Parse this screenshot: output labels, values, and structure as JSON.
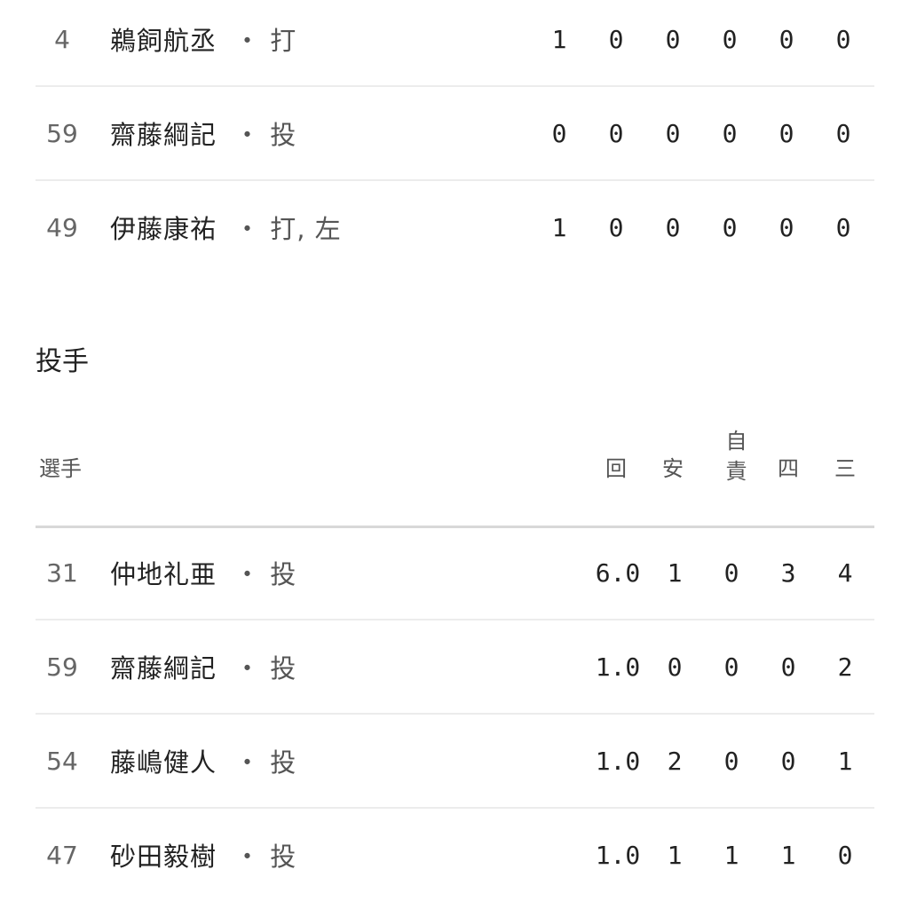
{
  "batting_rows": [
    {
      "number": "4",
      "name": "鵜飼航丞",
      "position": "・ 打",
      "stats": [
        "1",
        "0",
        "0",
        "0",
        "0",
        "0"
      ]
    },
    {
      "number": "59",
      "name": "齋藤綱記",
      "position": "・ 投",
      "stats": [
        "0",
        "0",
        "0",
        "0",
        "0",
        "0"
      ]
    },
    {
      "number": "49",
      "name": "伊藤康祐",
      "position": "・ 打, 左",
      "stats": [
        "1",
        "0",
        "0",
        "0",
        "0",
        "0"
      ]
    }
  ],
  "pitching": {
    "title": "投手",
    "headers": {
      "player": "選手",
      "innings": "回",
      "hits": "安",
      "earned_runs": "自責",
      "walks": "四",
      "strikeouts": "三"
    },
    "rows": [
      {
        "number": "31",
        "name": "仲地礼亜",
        "position": "・ 投",
        "stats": [
          "6.0",
          "1",
          "0",
          "3",
          "4"
        ]
      },
      {
        "number": "59",
        "name": "齋藤綱記",
        "position": "・ 投",
        "stats": [
          "1.0",
          "0",
          "0",
          "0",
          "2"
        ]
      },
      {
        "number": "54",
        "name": "藤嶋健人",
        "position": "・ 投",
        "stats": [
          "1.0",
          "2",
          "0",
          "0",
          "1"
        ]
      },
      {
        "number": "47",
        "name": "砂田毅樹",
        "position": "・ 投",
        "stats": [
          "1.0",
          "1",
          "1",
          "1",
          "0"
        ]
      }
    ]
  }
}
